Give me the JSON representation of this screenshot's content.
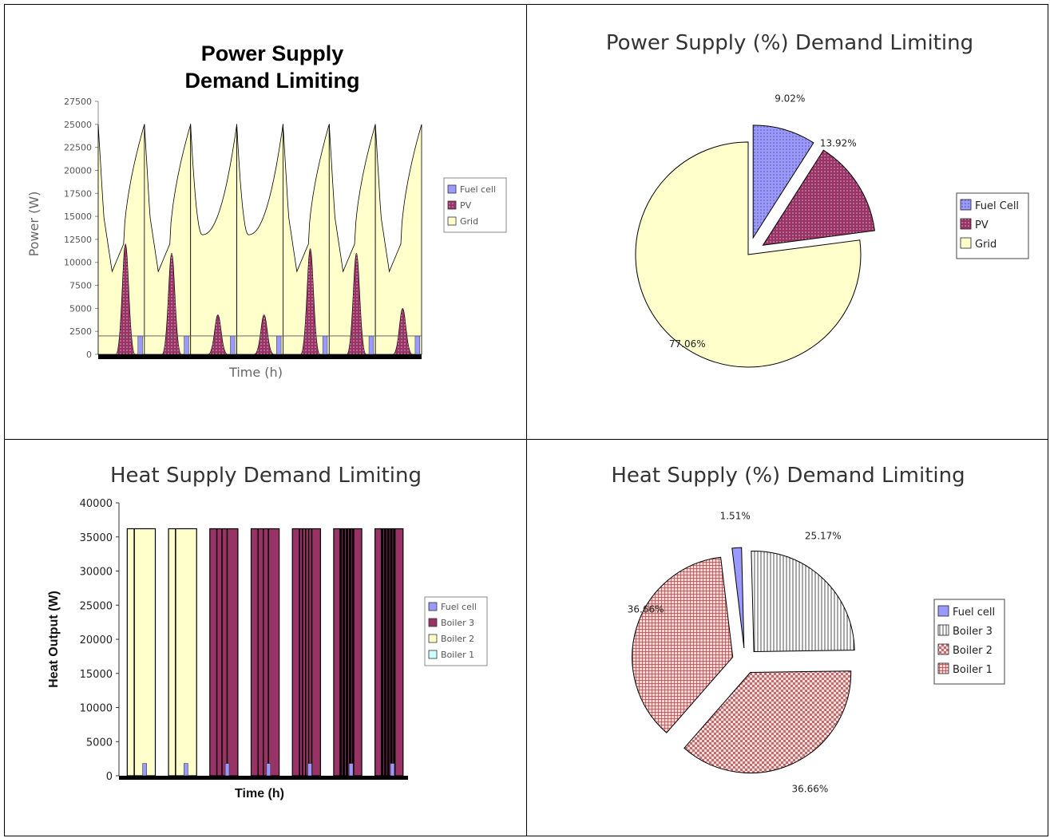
{
  "colors": {
    "fuel_cell": "#9999ff",
    "pv": "#993366",
    "grid": "#ffffcc",
    "boiler3": "#993366",
    "boiler2": "#ffffcc",
    "boiler1": "#ccffff",
    "boiler2_pie": "#e8a8a8",
    "boiler1_pie": "#d98080"
  },
  "chart_data": [
    {
      "type": "area",
      "title": "Power Supply\nDemand Limiting",
      "title_lines": [
        "Power Supply",
        "Demand Limiting"
      ],
      "xlabel": "Time (h)",
      "ylabel": "Power (W)",
      "ylim": [
        0,
        27500
      ],
      "yticks": [
        "27500",
        "25000",
        "22500",
        "20000",
        "17500",
        "15000",
        "12500",
        "10000",
        "7500",
        "5000",
        "2500",
        "0"
      ],
      "legend": "right",
      "series": [
        {
          "name": "Fuel cell",
          "color": "#9999ff"
        },
        {
          "name": "PV",
          "color": "#993366"
        },
        {
          "name": "Grid",
          "color": "#ffffcc"
        }
      ],
      "days": 7,
      "daily_profile": {
        "grid_peak": [
          25000,
          25000,
          25000,
          25000,
          25000,
          25000,
          25000
        ],
        "grid_min": [
          2000,
          2000,
          13000,
          13000,
          2000,
          2000,
          2000
        ],
        "pv_peak": [
          12000,
          11000,
          4300,
          4300,
          11500,
          11000,
          5000
        ],
        "fuel_cell_level": 2000
      }
    },
    {
      "type": "pie",
      "title": "Power Supply (%) Demand Limiting",
      "legend": "right",
      "slices": [
        {
          "name": "Fuel Cell",
          "value": 9.02,
          "label": "9.02%",
          "color": "#9999ff",
          "pattern": "dots"
        },
        {
          "name": "PV",
          "value": 13.92,
          "label": "13.92%",
          "color": "#993366",
          "pattern": "dots"
        },
        {
          "name": "Grid",
          "value": 77.06,
          "label": "77.06%",
          "color": "#ffffcc",
          "pattern": "none"
        }
      ]
    },
    {
      "type": "area",
      "title": "Heat Supply Demand Limiting",
      "xlabel": "Time (h)",
      "ylabel": "Heat Output (W)",
      "ylim": [
        0,
        40000
      ],
      "yticks": [
        "40000",
        "35000",
        "30000",
        "25000",
        "20000",
        "15000",
        "10000",
        "5000",
        "0"
      ],
      "legend": "right",
      "series": [
        {
          "name": "Fuel cell",
          "color": "#9999ff"
        },
        {
          "name": "Boiler 3",
          "color": "#993366"
        },
        {
          "name": "Boiler 2",
          "color": "#ffffcc"
        },
        {
          "name": "Boiler 1",
          "color": "#ccffff"
        }
      ],
      "days": 7,
      "block_level": 36200,
      "block_series": [
        "Boiler 2",
        "Boiler 2",
        "Boiler 3",
        "Boiler 3",
        "Boiler 3",
        "Boiler 3",
        "Boiler 3"
      ],
      "fuel_cell_level": 1800
    },
    {
      "type": "pie",
      "title": "Heat Supply (%) Demand Limiting",
      "legend": "right",
      "slices": [
        {
          "name": "Fuel cell",
          "value": 1.51,
          "label": "1.51%",
          "color": "#9999ff",
          "pattern": "none"
        },
        {
          "name": "Boiler 3",
          "value": 25.17,
          "label": "25.17%",
          "color": "#ffffff",
          "pattern": "vstripes"
        },
        {
          "name": "Boiler 2",
          "value": 36.66,
          "label": "36.66%",
          "color": "#f2cccc",
          "pattern": "check"
        },
        {
          "name": "Boiler 1",
          "value": 36.66,
          "label": "36.66%",
          "color": "#f2cccc",
          "pattern": "grid"
        }
      ]
    }
  ]
}
